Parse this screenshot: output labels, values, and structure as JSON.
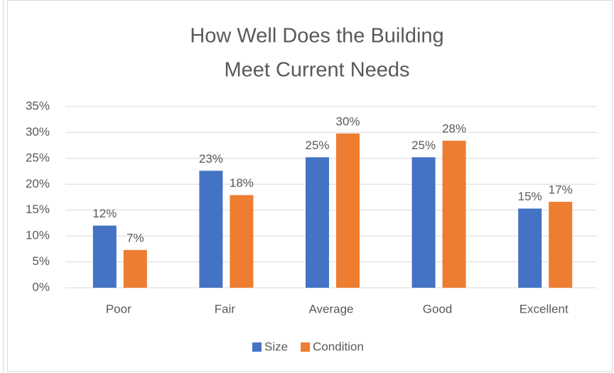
{
  "chart_data": {
    "type": "bar",
    "title": [
      "How Well Does the Building",
      "Meet Current Needs"
    ],
    "categories": [
      "Poor",
      "Fair",
      "Average",
      "Good",
      "Excellent"
    ],
    "series": [
      {
        "name": "Size",
        "color": "#4472c4",
        "values": [
          12,
          22.6,
          25.2,
          25.2,
          15.3
        ],
        "value_labels": [
          "12%",
          "23%",
          "25%",
          "25%",
          "15%"
        ]
      },
      {
        "name": "Condition",
        "color": "#ed7d31",
        "values": [
          7.3,
          17.9,
          29.8,
          28.4,
          16.6
        ],
        "value_labels": [
          "7%",
          "18%",
          "30%",
          "28%",
          "17%"
        ]
      }
    ],
    "ylim": [
      0,
      35
    ],
    "yticks": [
      {
        "value": 0,
        "label": "0%"
      },
      {
        "value": 5,
        "label": "5%"
      },
      {
        "value": 10,
        "label": "10%"
      },
      {
        "value": 15,
        "label": "15%"
      },
      {
        "value": 20,
        "label": "20%"
      },
      {
        "value": 25,
        "label": "25%"
      },
      {
        "value": 30,
        "label": "30%"
      },
      {
        "value": 35,
        "label": "35%"
      }
    ],
    "grid": true,
    "legend": "bottom"
  }
}
